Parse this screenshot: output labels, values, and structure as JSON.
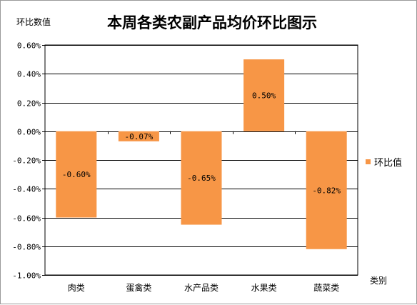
{
  "chart_data": {
    "type": "bar",
    "title": "本周各类农副产品均价环比图示",
    "ylabel": "环比数值",
    "xlabel": "类别",
    "categories": [
      "肉类",
      "蛋禽类",
      "水产品类",
      "水果类",
      "蔬菜类"
    ],
    "series": [
      {
        "name": "环比值",
        "values": [
          -0.6,
          -0.07,
          -0.65,
          0.5,
          -0.82
        ],
        "value_labels": [
          "-0.60%",
          "-0.07%",
          "-0.65%",
          "0.50%",
          "-0.82%"
        ],
        "color": "#F79646"
      }
    ],
    "ylim": [
      -1.0,
      0.6
    ],
    "y_ticks": [
      0.6,
      0.4,
      0.2,
      0.0,
      -0.2,
      -0.4,
      -0.6,
      -0.8,
      -1.0
    ],
    "y_tick_labels": [
      "0.60%",
      "0.40%",
      "0.20%",
      "0.00%",
      "-0.20%",
      "-0.40%",
      "-0.60%",
      "-0.80%",
      "-1.00%"
    ],
    "grid": true,
    "legend_position": "right"
  },
  "colors": {
    "bar": "#F79646",
    "grid": "#000000"
  }
}
